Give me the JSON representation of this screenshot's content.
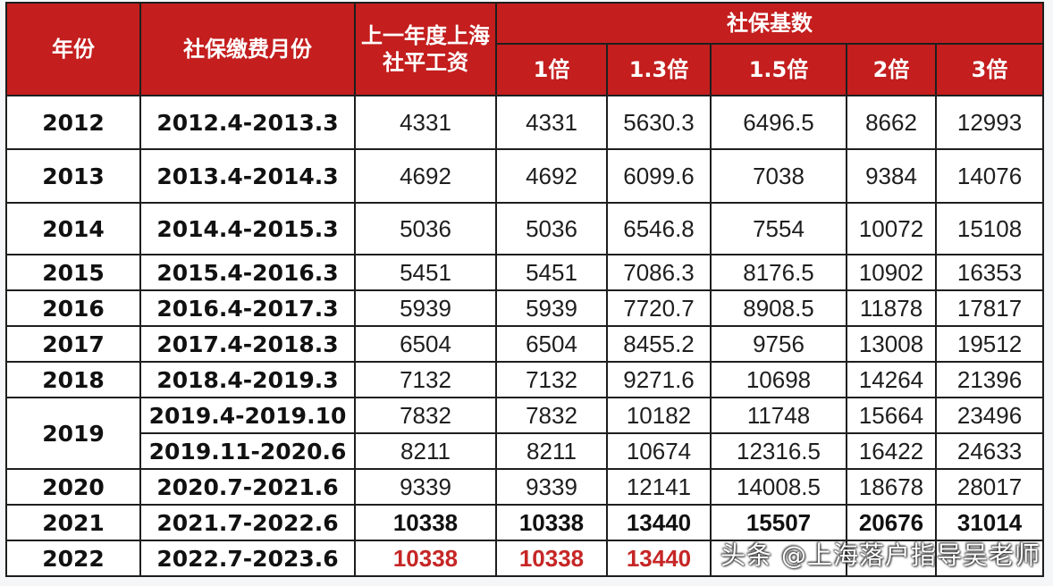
{
  "header": {
    "year": "年份",
    "period": "社保缴费月份",
    "avg_wage": "上一年度上海社平工资",
    "base_group": "社保基数",
    "multipliers": [
      "1倍",
      "1.3倍",
      "1.5倍",
      "2倍",
      "3倍"
    ]
  },
  "rows": [
    {
      "year": "2012",
      "period": "2012.4-2013.3",
      "avg": "4331",
      "v": [
        "4331",
        "5630.3",
        "6496.5",
        "8662",
        "12993"
      ]
    },
    {
      "year": "2013",
      "period": "2013.4-2014.3",
      "avg": "4692",
      "v": [
        "4692",
        "6099.6",
        "7038",
        "9384",
        "14076"
      ]
    },
    {
      "year": "2014",
      "period": "2014.4-2015.3",
      "avg": "5036",
      "v": [
        "5036",
        "6546.8",
        "7554",
        "10072",
        "15108"
      ]
    },
    {
      "year": "2015",
      "period": "2015.4-2016.3",
      "avg": "5451",
      "v": [
        "5451",
        "7086.3",
        "8176.5",
        "10902",
        "16353"
      ]
    },
    {
      "year": "2016",
      "period": "2016.4-2017.3",
      "avg": "5939",
      "v": [
        "5939",
        "7720.7",
        "8908.5",
        "11878",
        "17817"
      ]
    },
    {
      "year": "2017",
      "period": "2017.4-2018.3",
      "avg": "6504",
      "v": [
        "6504",
        "8455.2",
        "9756",
        "13008",
        "19512"
      ]
    },
    {
      "year": "2018",
      "period": "2018.4-2019.3",
      "avg": "7132",
      "v": [
        "7132",
        "9271.6",
        "10698",
        "14264",
        "21396"
      ]
    },
    {
      "year": "2019",
      "period": "2019.4-2019.10",
      "avg": "7832",
      "v": [
        "7832",
        "10182",
        "11748",
        "15664",
        "23496"
      ]
    },
    {
      "year": "2019",
      "period": "2019.11-2020.6",
      "avg": "8211",
      "v": [
        "8211",
        "10674",
        "12316.5",
        "16422",
        "24633"
      ]
    },
    {
      "year": "2020",
      "period": "2020.7-2021.6",
      "avg": "9339",
      "v": [
        "9339",
        "12141",
        "14008.5",
        "18678",
        "28017"
      ]
    },
    {
      "year": "2021",
      "period": "2021.7-2022.6",
      "avg": "10338",
      "v": [
        "10338",
        "13440",
        "15507",
        "20676",
        "31014"
      ]
    },
    {
      "year": "2022",
      "period": "2022.7-2023.6",
      "avg": "10338",
      "v": [
        "10338",
        "13440",
        "",
        "",
        ""
      ]
    }
  ],
  "watermark": "头条 @上海落户指导吴老师",
  "colors": {
    "header_bg": "#c41e1e",
    "header_text": "#ffffff",
    "highlight_red": "#c62626",
    "border": "#1e1e1e"
  }
}
